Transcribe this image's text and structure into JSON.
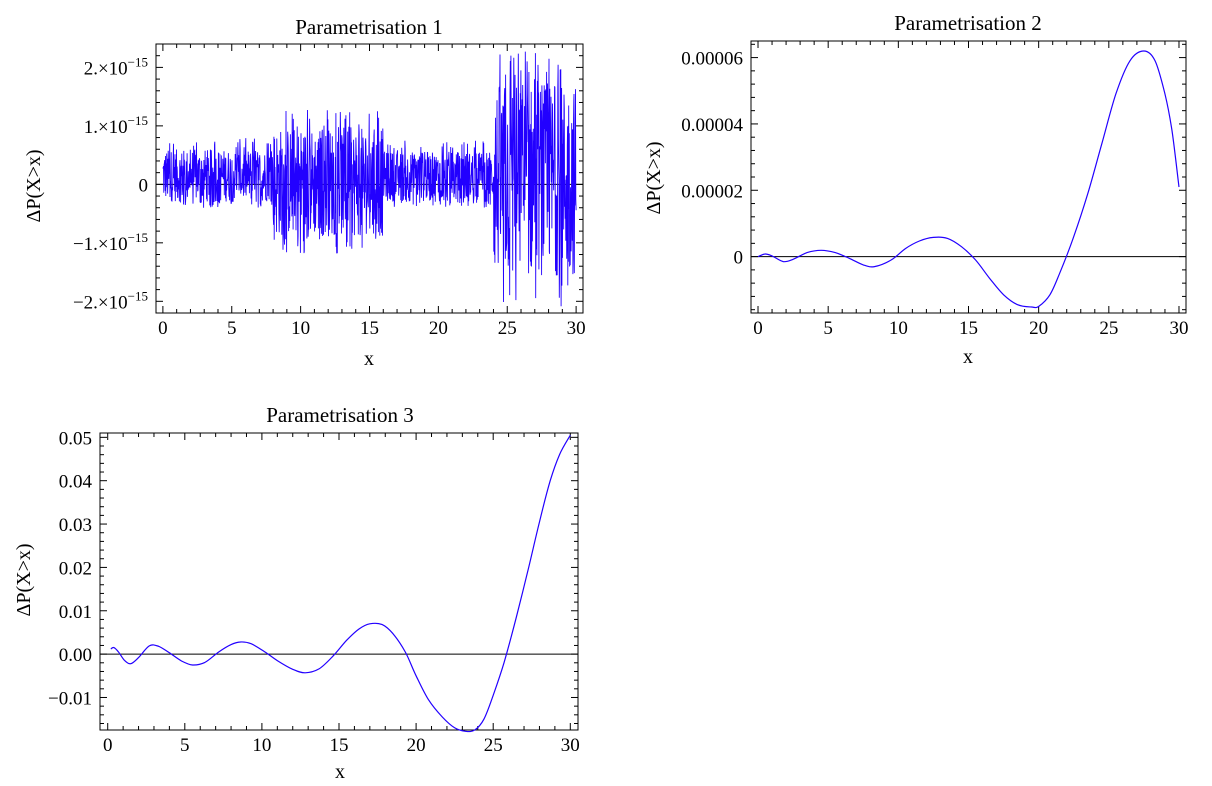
{
  "chart_data": [
    {
      "type": "line",
      "title": "Parametrisation 1",
      "xlabel": "x",
      "ylabel": "ΔP(X>x)",
      "xlim": [
        -0.5,
        30.5
      ],
      "ylim": [
        -2.2e-15,
        2.4e-15
      ],
      "x_ticks": [
        {
          "value": 0,
          "label": "0"
        },
        {
          "value": 5,
          "label": "5"
        },
        {
          "value": 10,
          "label": "10"
        },
        {
          "value": 15,
          "label": "15"
        },
        {
          "value": 20,
          "label": "20"
        },
        {
          "value": 25,
          "label": "25"
        },
        {
          "value": 30,
          "label": "30"
        }
      ],
      "y_ticks": [
        {
          "value": 2e-15,
          "label": "2.×10",
          "exp": "−15"
        },
        {
          "value": 1e-15,
          "label": "1.×10",
          "exp": "−15"
        },
        {
          "value": 0,
          "label": "0",
          "exp": ""
        },
        {
          "value": -1e-15,
          "label": "−1.×10",
          "exp": "−15"
        },
        {
          "value": -2e-15,
          "label": "−2.×10",
          "exp": "−15"
        }
      ],
      "color": "#2200ff",
      "noise": true,
      "series": [
        {
          "description": "numerical-precision noise, symmetric about 0",
          "segments": [
            {
              "x_from": 0,
              "x_to": 8,
              "max": 8e-16,
              "min": -4e-16
            },
            {
              "x_from": 8,
              "x_to": 16,
              "max": 1.3e-15,
              "min": -1.2e-15
            },
            {
              "x_from": 16,
              "x_to": 24,
              "max": 7.5e-16,
              "min": -4e-16
            },
            {
              "x_from": 24,
              "x_to": 30,
              "max": 2.3e-15,
              "min": -2.1e-15
            }
          ]
        }
      ]
    },
    {
      "type": "line",
      "title": "Parametrisation 2",
      "xlabel": "x",
      "ylabel": "ΔP(X>x)",
      "xlim": [
        -0.5,
        30.5
      ],
      "ylim": [
        -1.7e-05,
        6.5e-05
      ],
      "x_ticks": [
        {
          "value": 0,
          "label": "0"
        },
        {
          "value": 5,
          "label": "5"
        },
        {
          "value": 10,
          "label": "10"
        },
        {
          "value": 15,
          "label": "15"
        },
        {
          "value": 20,
          "label": "20"
        },
        {
          "value": 25,
          "label": "25"
        },
        {
          "value": 30,
          "label": "30"
        }
      ],
      "y_ticks": [
        {
          "value": 6e-05,
          "label": "0.00006"
        },
        {
          "value": 4e-05,
          "label": "0.00004"
        },
        {
          "value": 2e-05,
          "label": "0.00002"
        },
        {
          "value": 0,
          "label": "0"
        }
      ],
      "color": "#2200ff",
      "series": [
        {
          "x": [
            0,
            0.5,
            1,
            1.8,
            2.5,
            3.5,
            4.5,
            5.5,
            6.5,
            7.5,
            8.3,
            9.5,
            10.5,
            11.5,
            12.5,
            13.5,
            14.5,
            15.5,
            16.5,
            17.5,
            18.5,
            19.5,
            20,
            20.8,
            21.5,
            22.5,
            23.5,
            24.5,
            25.5,
            26.5,
            27.5,
            28.3,
            29,
            29.5,
            30
          ],
          "y": [
            0,
            8e-07,
            2e-07,
            -1.5e-06,
            -8e-07,
            1.2e-06,
            1.9e-06,
            1.2e-06,
            -5e-07,
            -2.5e-06,
            -3e-06,
            -1e-06,
            2.4e-06,
            4.7e-06,
            5.8e-06,
            5.5e-06,
            3e-06,
            -1e-06,
            -6.5e-06,
            -1.15e-05,
            -1.45e-05,
            -1.52e-05,
            -1.5e-05,
            -1.15e-05,
            -5e-06,
            6e-06,
            1.9e-05,
            3.4e-05,
            4.9e-05,
            5.9e-05,
            6.2e-05,
            5.9e-05,
            4.9e-05,
            3.8e-05,
            2.1e-05
          ]
        }
      ]
    },
    {
      "type": "line",
      "title": "Parametrisation 3",
      "xlabel": "x",
      "ylabel": "ΔP(X>x)",
      "xlim": [
        -0.5,
        30.5
      ],
      "ylim": [
        -0.0175,
        0.051
      ],
      "x_ticks": [
        {
          "value": 0,
          "label": "0"
        },
        {
          "value": 5,
          "label": "5"
        },
        {
          "value": 10,
          "label": "10"
        },
        {
          "value": 15,
          "label": "15"
        },
        {
          "value": 20,
          "label": "20"
        },
        {
          "value": 25,
          "label": "25"
        },
        {
          "value": 30,
          "label": "30"
        }
      ],
      "y_ticks": [
        {
          "value": 0.05,
          "label": "0.05"
        },
        {
          "value": 0.04,
          "label": "0.04"
        },
        {
          "value": 0.03,
          "label": "0.03"
        },
        {
          "value": 0.02,
          "label": "0.02"
        },
        {
          "value": 0.01,
          "label": "0.01"
        },
        {
          "value": 0,
          "label": "0.00"
        },
        {
          "value": -0.01,
          "label": "−0.01"
        }
      ],
      "color": "#2200ff",
      "series": [
        {
          "x": [
            0.2,
            0.4,
            0.7,
            1.1,
            1.5,
            2,
            2.7,
            3.3,
            4,
            4.8,
            5.5,
            6.3,
            7.2,
            8,
            8.6,
            9.3,
            10.2,
            11,
            12,
            12.8,
            13.7,
            14.6,
            15.5,
            16.3,
            17,
            17.8,
            18.5,
            19.3,
            20,
            20.8,
            21.7,
            22.5,
            23.2,
            23.8,
            24.4,
            25,
            25.7,
            26.5,
            27.3,
            28,
            28.7,
            29.3,
            30
          ],
          "y": [
            0.0012,
            0.0015,
            0.0005,
            -0.0015,
            -0.0022,
            -0.0008,
            0.0019,
            0.0018,
            0.0003,
            -0.0016,
            -0.0025,
            -0.0019,
            0.0005,
            0.0022,
            0.0028,
            0.0024,
            0.0005,
            -0.0015,
            -0.0035,
            -0.0043,
            -0.0034,
            -0.0005,
            0.0032,
            0.0058,
            0.007,
            0.0068,
            0.0047,
            0.0005,
            -0.005,
            -0.0105,
            -0.0145,
            -0.017,
            -0.0178,
            -0.0175,
            -0.015,
            -0.0095,
            -0.002,
            0.0085,
            0.02,
            0.0305,
            0.04,
            0.046,
            0.0505
          ]
        }
      ]
    }
  ]
}
